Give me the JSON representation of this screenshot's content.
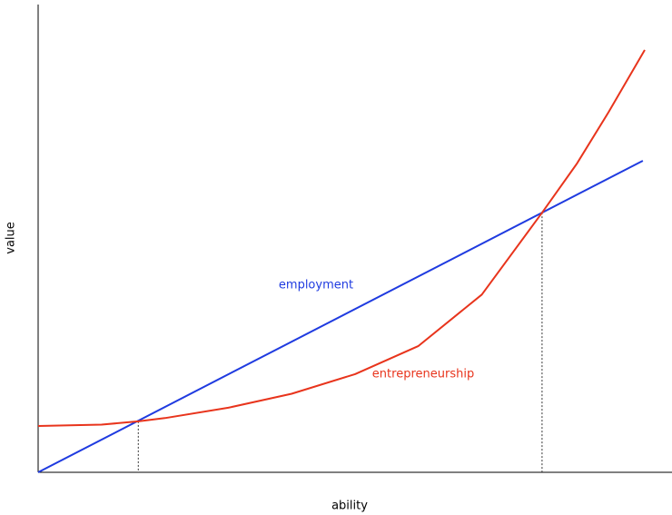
{
  "chart_data": {
    "type": "line",
    "x_label": "ability",
    "y_label": "value",
    "xlim": [
      0,
      100
    ],
    "ylim": [
      0,
      100
    ],
    "series": [
      {
        "name": "employment",
        "color": "#1f3be0",
        "x": [
          0,
          95.4
        ],
        "values": [
          0,
          66.6
        ]
      },
      {
        "name": "entrepreneurship",
        "color": "#e8341c",
        "x": [
          0,
          10,
          15.8,
          20,
          30,
          40,
          50,
          60,
          70,
          79.5,
          85,
          90,
          95.7
        ],
        "values": [
          9.9,
          10.2,
          10.9,
          11.6,
          13.8,
          16.8,
          21,
          27,
          38,
          55.5,
          66,
          77,
          90.3
        ]
      }
    ],
    "vlines": [
      {
        "x": 15.8,
        "y": 10.9
      },
      {
        "x": 79.5,
        "y": 55.5
      }
    ]
  }
}
